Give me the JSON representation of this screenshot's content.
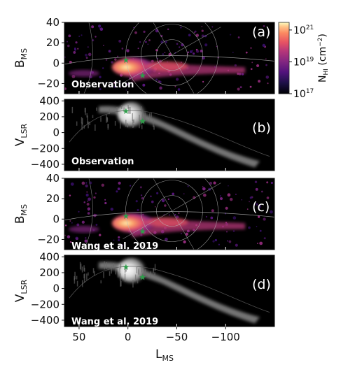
{
  "chart_data": {
    "type": "heatmap",
    "x_axis": {
      "label_main": "L",
      "label_sub": "MS",
      "lim": [
        65,
        -150
      ],
      "ticks": [
        50,
        0,
        -50,
        -100
      ],
      "tick_labels": [
        "50",
        "0",
        "−50",
        "−100"
      ],
      "reversed": true
    },
    "panels": [
      {
        "id": "a",
        "label": "(a)",
        "annotation": "Observation",
        "kind": "column-density",
        "ylabel_main": "B",
        "ylabel_sub": "MS",
        "ylim": [
          -30,
          40
        ],
        "yticks": [
          40,
          20,
          0,
          -20
        ],
        "ytick_labels": [
          "40",
          "20",
          "0",
          "−20"
        ],
        "markers": [
          {
            "x": 2,
            "y": 3
          },
          {
            "x": -15,
            "y": -12
          }
        ],
        "overlay": "coordinate grid"
      },
      {
        "id": "b",
        "label": "(b)",
        "annotation": "Observation",
        "kind": "velocity",
        "ylabel_main": "V",
        "ylabel_sub": "LSR",
        "ylim": [
          -480,
          420
        ],
        "yticks": [
          400,
          200,
          0,
          -200,
          -400
        ],
        "ytick_labels": [
          "400",
          "200",
          "0",
          "−200",
          "−400"
        ],
        "markers": [
          {
            "x": 2,
            "y": 270
          },
          {
            "x": -15,
            "y": 140
          }
        ]
      },
      {
        "id": "c",
        "label": "(c)",
        "annotation": "Wang et al. 2019",
        "kind": "column-density",
        "ylabel_main": "B",
        "ylabel_sub": "MS",
        "ylim": [
          -30,
          40
        ],
        "yticks": [
          40,
          20,
          0,
          -20
        ],
        "ytick_labels": [
          "40",
          "20",
          "0",
          "−20"
        ],
        "markers": [
          {
            "x": 2,
            "y": 3
          },
          {
            "x": -15,
            "y": -12
          }
        ],
        "overlay": "coordinate grid"
      },
      {
        "id": "d",
        "label": "(d)",
        "annotation": "Wang et al. 2019",
        "kind": "velocity",
        "ylabel_main": "V",
        "ylabel_sub": "LSR",
        "ylim": [
          -480,
          420
        ],
        "yticks": [
          400,
          200,
          0,
          -200,
          -400
        ],
        "ytick_labels": [
          "400",
          "200",
          "0",
          "−200",
          "−400"
        ],
        "markers": [
          {
            "x": 2,
            "y": 270
          },
          {
            "x": -15,
            "y": 140
          }
        ]
      }
    ],
    "colorbar": {
      "label_main": "N",
      "label_sub": "HI",
      "label_unit": "(cm",
      "label_exp": "−2",
      "label_close": ")",
      "scale": "log",
      "range": [
        1e+17,
        3e+21
      ],
      "ticks": [
        {
          "value": 1e+21,
          "base": "10",
          "exp": "21"
        },
        {
          "value": 1e+19,
          "base": "10",
          "exp": "19"
        },
        {
          "value": 1e+17,
          "base": "10",
          "exp": "17"
        }
      ],
      "colormap": "magma"
    },
    "colors": {
      "background": "#000000",
      "marker": "#2e9e4a",
      "grid_overlay": "#b8b8b8"
    }
  }
}
